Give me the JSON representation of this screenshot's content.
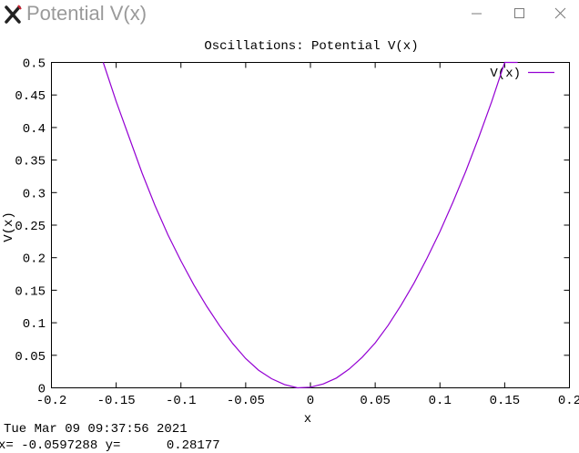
{
  "window": {
    "title": "Potential V(x)",
    "icon": "x11-x-icon",
    "controls": [
      "minimize-icon",
      "maximize-icon",
      "close-icon"
    ]
  },
  "status": {
    "date": "Tue Mar 09 09:37:56 2021",
    "coords": "x= -0.0597288 y=      0.28177"
  },
  "colors": {
    "curve": "#9400d3",
    "axis": "#000000",
    "background": "#ffffff"
  },
  "chart_data": {
    "type": "line",
    "title": "Oscillations: Potential V(x)",
    "xlabel": "x",
    "ylabel": "V(x)",
    "xlim": [
      -0.2,
      0.2
    ],
    "ylim": [
      0,
      0.5
    ],
    "xticks": [
      "-0.2",
      "-0.15",
      "-0.1",
      "-0.05",
      "0",
      "0.05",
      "0.1",
      "0.15",
      "0.2"
    ],
    "yticks": [
      "0",
      "0.05",
      "0.1",
      "0.15",
      "0.2",
      "0.25",
      "0.3",
      "0.35",
      "0.4",
      "0.45",
      "0.5"
    ],
    "grid": false,
    "legend_position": "top-right",
    "series": [
      {
        "name": "V(x)",
        "x": [
          -0.16,
          -0.15,
          -0.14,
          -0.13,
          -0.12,
          -0.11,
          -0.1,
          -0.09,
          -0.08,
          -0.07,
          -0.06,
          -0.05,
          -0.04,
          -0.03,
          -0.02,
          -0.01,
          0.0,
          0.01,
          0.02,
          0.03,
          0.04,
          0.05,
          0.06,
          0.07,
          0.08,
          0.09,
          0.1,
          0.11,
          0.12,
          0.13,
          0.14,
          0.15,
          0.16
        ],
        "y": [
          0.5,
          0.44,
          0.385,
          0.33,
          0.28,
          0.235,
          0.195,
          0.158,
          0.125,
          0.095,
          0.068,
          0.045,
          0.027,
          0.014,
          0.005,
          0.0,
          0.001,
          0.006,
          0.015,
          0.029,
          0.047,
          0.069,
          0.096,
          0.127,
          0.161,
          0.199,
          0.24,
          0.285,
          0.333,
          0.385,
          0.44,
          0.5,
          0.51
        ]
      }
    ]
  }
}
